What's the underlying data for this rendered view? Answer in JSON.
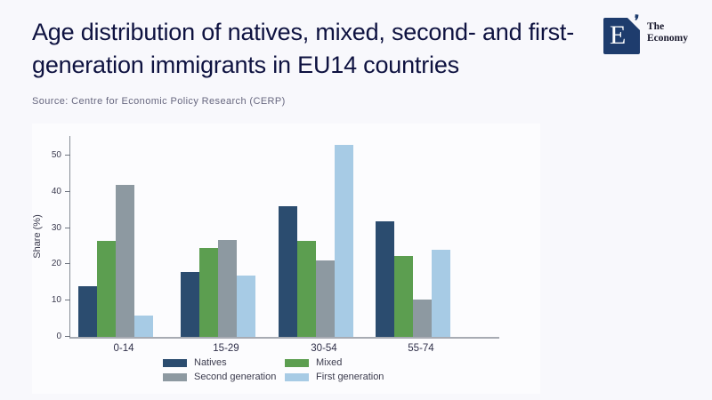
{
  "header": {
    "title": "Age distribution of natives, mixed, second- and first-generation immigrants in EU14 countries",
    "source": "Source: Centre for Economic Policy Research (CERP)"
  },
  "logo": {
    "letter": "E",
    "quote_mark": "❜",
    "name_line1": "The",
    "name_line2": "Economy",
    "square_color": "#1e3c6d"
  },
  "chart_data": {
    "type": "bar",
    "title": "Age distribution of natives, mixed, second- and first-generation immigrants in EU14 countries",
    "categories": [
      "0-14",
      "15-29",
      "30-54",
      "55-74"
    ],
    "series": [
      {
        "name": "Natives",
        "color": "#2b4c6f",
        "values": [
          13.9,
          17.9,
          36.0,
          31.8
        ]
      },
      {
        "name": "Mixed",
        "color": "#5c9e50",
        "values": [
          26.4,
          24.5,
          26.4,
          22.4
        ]
      },
      {
        "name": "Second generation",
        "color": "#8d99a1",
        "values": [
          41.8,
          26.8,
          21.0,
          10.2
        ]
      },
      {
        "name": "First generation",
        "color": "#a7cbe5",
        "values": [
          5.9,
          16.9,
          52.9,
          24.0
        ]
      }
    ],
    "xlabel": "",
    "ylabel": "Share (%)",
    "y_ticks": [
      0,
      10,
      20,
      30,
      40,
      50
    ],
    "ylim": [
      0,
      55.4
    ],
    "grid": false,
    "legend_position": "bottom"
  }
}
